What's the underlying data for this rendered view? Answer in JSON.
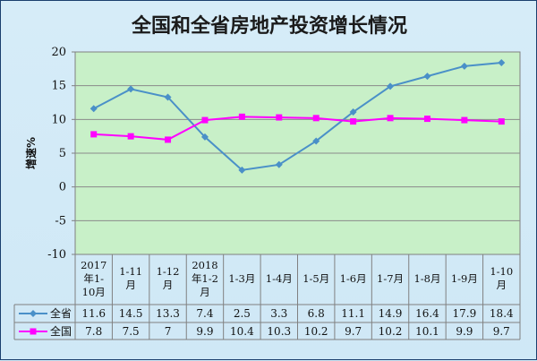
{
  "chart_data": {
    "type": "line",
    "title": "全国和全省房地产投资增长情况",
    "ylabel": "增速%",
    "ylim": [
      -10,
      20
    ],
    "yticks": [
      -10,
      -5,
      0,
      5,
      10,
      15,
      20
    ],
    "grid": true,
    "categories": [
      [
        "2017",
        "年1-",
        "10月"
      ],
      [
        "1-11",
        "月"
      ],
      [
        "1-12",
        "月"
      ],
      [
        "2018",
        "年1-2",
        "月"
      ],
      [
        "1-3月"
      ],
      [
        "1-4月"
      ],
      [
        "1-5月"
      ],
      [
        "1-6月"
      ],
      [
        "1-7月"
      ],
      [
        "1-8月"
      ],
      [
        "1-9月"
      ],
      [
        "1-10",
        "月"
      ]
    ],
    "series": [
      {
        "name": "全省",
        "color": "#4a90c8",
        "marker": "diamond",
        "values": [
          11.6,
          14.5,
          13.3,
          7.4,
          2.5,
          3.3,
          6.8,
          11.1,
          14.9,
          16.4,
          17.9,
          18.4
        ],
        "labels": [
          "11.6",
          "14.5",
          "13.3",
          "7.4",
          "2.5",
          "3.3",
          "6.8",
          "11.1",
          "14.9",
          "16.4",
          "17.9",
          "18.4"
        ]
      },
      {
        "name": "全国",
        "color": "#ff00ff",
        "marker": "square",
        "values": [
          7.8,
          7.5,
          7,
          9.9,
          10.4,
          10.3,
          10.2,
          9.7,
          10.2,
          10.1,
          9.9,
          9.7
        ],
        "labels": [
          "7.8",
          "7.5",
          "7",
          "9.9",
          "10.4",
          "10.3",
          "10.2",
          "9.7",
          "10.2",
          "10.1",
          "9.9",
          "9.7"
        ]
      }
    ],
    "plot_bg": "#c8f0c8"
  }
}
